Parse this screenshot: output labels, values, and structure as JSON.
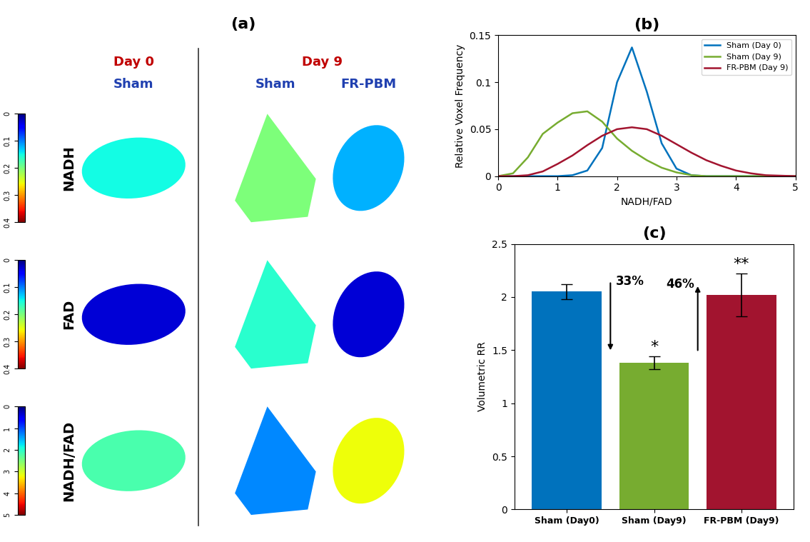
{
  "panel_a": {
    "title": "(a)",
    "groups": [
      {
        "label": "Day 0",
        "columns": [
          "Sham"
        ]
      },
      {
        "label": "Day 9",
        "columns": [
          "Sham",
          "FR-PBM"
        ]
      }
    ],
    "rows": [
      {
        "label": "NADH",
        "colorbar": {
          "lim": [
            0,
            0.4
          ],
          "ticks": [
            0,
            0.1,
            0.2,
            0.3,
            0.4
          ]
        },
        "values": [
          0.15,
          0.2,
          0.12
        ]
      },
      {
        "label": "FAD",
        "colorbar": {
          "lim": [
            0,
            0.4
          ],
          "ticks": [
            0,
            0.1,
            0.2,
            0.3,
            0.4
          ]
        },
        "values": [
          0.03,
          0.16,
          0.03
        ]
      },
      {
        "label": "NADH/FAD",
        "colorbar": {
          "lim": [
            0,
            5
          ],
          "ticks": [
            0,
            1,
            2,
            3,
            4,
            5
          ]
        },
        "values": [
          2.2,
          1.3,
          3.2
        ]
      }
    ]
  },
  "chart_data": [
    {
      "type": "line",
      "title": "(b)",
      "x_label": "NADH/FAD",
      "y_label": "Relative Voxel Frequency",
      "x": [
        0,
        0.25,
        0.5,
        0.75,
        1.0,
        1.25,
        1.5,
        1.75,
        2.0,
        2.25,
        2.5,
        2.75,
        3.0,
        3.25,
        3.5,
        3.75,
        4.0,
        4.25,
        4.5,
        4.75,
        5.0
      ],
      "series": [
        {
          "name": "Sham (Day 0)",
          "color": "#0072BD",
          "values": [
            0,
            0,
            0,
            0,
            0,
            0.001,
            0.006,
            0.03,
            0.1,
            0.137,
            0.09,
            0.035,
            0.008,
            0.001,
            0,
            0,
            0,
            0,
            0,
            0,
            0
          ]
        },
        {
          "name": "Sham (Day 9)",
          "color": "#77AC30",
          "values": [
            0,
            0.003,
            0.02,
            0.045,
            0.057,
            0.067,
            0.069,
            0.058,
            0.04,
            0.027,
            0.017,
            0.009,
            0.004,
            0.001,
            0,
            0,
            0,
            0,
            0,
            0,
            0
          ]
        },
        {
          "name": "FR-PBM (Day 9)",
          "color": "#A2142F",
          "values": [
            0,
            0,
            0.001,
            0.005,
            0.013,
            0.022,
            0.033,
            0.043,
            0.05,
            0.052,
            0.05,
            0.043,
            0.034,
            0.025,
            0.017,
            0.011,
            0.006,
            0.003,
            0.001,
            0.0005,
            0
          ]
        }
      ],
      "xlim": [
        0,
        5
      ],
      "xticks": [
        0,
        1,
        2,
        3,
        4,
        5
      ],
      "ylim": [
        0,
        0.15
      ],
      "yticks": [
        0,
        0.05,
        0.1,
        0.15
      ],
      "legend": "upper right"
    },
    {
      "type": "bar",
      "title": "(c)",
      "y_label": "Volumetric RR",
      "categories": [
        "Sham (Day0)",
        "Sham (Day9)",
        "FR-PBM (Day9)"
      ],
      "values": [
        2.05,
        1.38,
        2.02
      ],
      "errors": [
        0.07,
        0.06,
        0.2
      ],
      "colors": [
        "#0072BD",
        "#77AC30",
        "#A2142F"
      ],
      "significance": [
        null,
        "*",
        "**"
      ],
      "annotations": [
        {
          "text": "33%",
          "from": 0,
          "to": 1
        },
        {
          "text": "46%",
          "from": 1,
          "to": 2
        }
      ],
      "ylim": [
        0,
        2.5
      ],
      "yticks": [
        0,
        0.5,
        1,
        1.5,
        2,
        2.5
      ]
    }
  ]
}
